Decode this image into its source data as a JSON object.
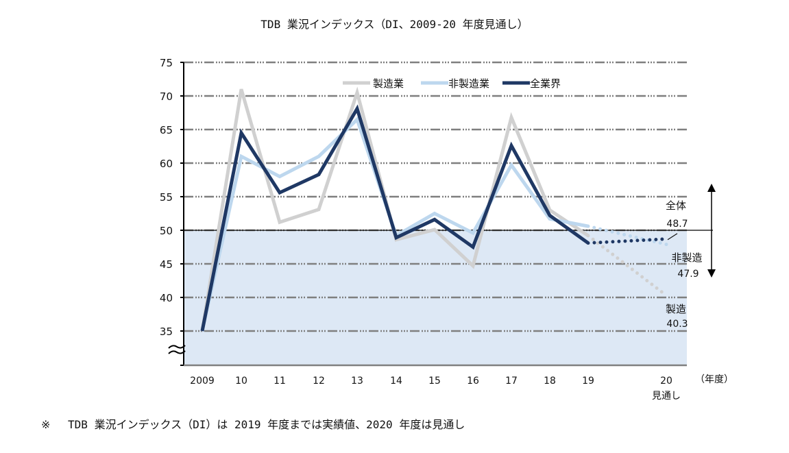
{
  "chart_data": {
    "type": "line",
    "title": "TDB 業況インデックス（DI、2009-20 年度見通し）",
    "xlabel": "（年度）",
    "ylabel": "",
    "ylim": [
      30,
      75
    ],
    "yticks": [
      35,
      40,
      45,
      50,
      55,
      60,
      65,
      70,
      75
    ],
    "ytick_labels": [
      "35",
      "40",
      "45",
      "50",
      "55",
      "60",
      "65",
      "70",
      "75"
    ],
    "reference_line": 50,
    "shaded_below": 50,
    "grid": true,
    "categories": [
      "2009",
      "10",
      "11",
      "12",
      "13",
      "14",
      "15",
      "16",
      "17",
      "18",
      "19",
      "20"
    ],
    "forecast_sublabel": "見通し",
    "legend_position": "top-center",
    "series": [
      {
        "name": "製造業",
        "color": "#d0d0d0",
        "values": [
          35.0,
          71.0,
          51.2,
          53.1,
          70.5,
          48.6,
          50.1,
          44.7,
          66.8,
          53.0,
          49.2,
          40.3
        ]
      },
      {
        "name": "非製造業",
        "color": "#bdd7ee",
        "values": [
          35.0,
          61.0,
          58.0,
          61.0,
          66.5,
          49.2,
          52.5,
          49.6,
          59.7,
          51.7,
          50.6,
          47.9
        ]
      },
      {
        "name": "全業界",
        "color": "#1f3864",
        "values": [
          35.0,
          64.5,
          55.6,
          58.3,
          68.1,
          48.9,
          51.6,
          47.5,
          62.6,
          52.2,
          48.1,
          48.7
        ]
      }
    ],
    "annotations": [
      {
        "label": "全体",
        "value": "48.7"
      },
      {
        "label": "非製造",
        "value": "47.9"
      },
      {
        "label": "製造",
        "value": "40.3"
      }
    ]
  },
  "footnote": "※　 TDB 業況インデックス（DI）は 2019 年度までは実績値、2020 年度は見通し"
}
